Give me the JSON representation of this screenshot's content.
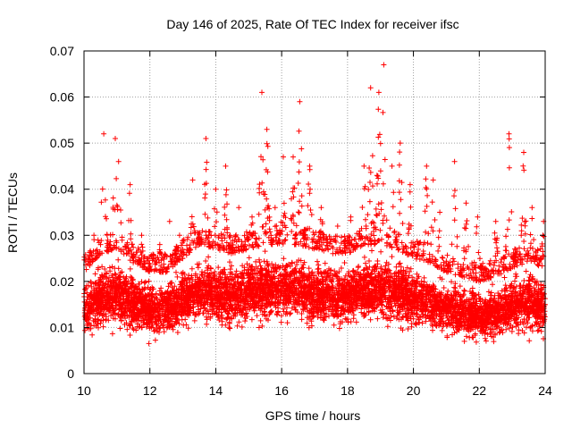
{
  "chart_data": {
    "type": "scatter",
    "title": "Day 146 of 2025, Rate Of TEC Index for receiver ifsc",
    "xlabel": "GPS time / hours",
    "ylabel": "ROTI / TECUs",
    "xlim": [
      10,
      24
    ],
    "ylim": [
      0,
      0.07
    ],
    "x_ticks": [
      10,
      12,
      14,
      16,
      18,
      20,
      22,
      24
    ],
    "y_ticks": [
      0,
      0.01,
      0.02,
      0.03,
      0.04,
      0.05,
      0.06,
      0.07
    ],
    "x_tick_labels": [
      "10",
      "12",
      "14",
      "16",
      "18",
      "20",
      "22",
      "24"
    ],
    "y_tick_labels": [
      "0",
      "0.01",
      "0.02",
      "0.03",
      "0.04",
      "0.05",
      "0.06",
      "0.07"
    ],
    "grid": true,
    "marker": "+",
    "series": [
      {
        "name": "ROTI",
        "color": "#ff0000",
        "points_per_hour": 500,
        "baseline_envelope": {
          "x": [
            10,
            10.5,
            11,
            11.5,
            12,
            12.5,
            13,
            13.5,
            14,
            14.5,
            15,
            15.5,
            16,
            16.5,
            17,
            17.5,
            18,
            18.5,
            19,
            19.5,
            20,
            20.5,
            21,
            21.5,
            22,
            22.5,
            23,
            23.5,
            24
          ],
          "low": [
            0.007,
            0.008,
            0.009,
            0.008,
            0.007,
            0.008,
            0.008,
            0.009,
            0.009,
            0.008,
            0.009,
            0.01,
            0.01,
            0.01,
            0.009,
            0.009,
            0.009,
            0.01,
            0.01,
            0.01,
            0.009,
            0.008,
            0.008,
            0.007,
            0.007,
            0.007,
            0.008,
            0.008,
            0.008
          ],
          "high": [
            0.022,
            0.026,
            0.027,
            0.024,
            0.022,
            0.022,
            0.025,
            0.028,
            0.027,
            0.026,
            0.027,
            0.028,
            0.028,
            0.028,
            0.027,
            0.026,
            0.026,
            0.028,
            0.028,
            0.027,
            0.025,
            0.024,
            0.022,
            0.021,
            0.02,
            0.021,
            0.023,
            0.024,
            0.023
          ]
        },
        "spikes": [
          {
            "x": 10.3,
            "y": 0.03
          },
          {
            "x": 10.6,
            "y": 0.052
          },
          {
            "x": 10.95,
            "y": 0.051
          },
          {
            "x": 11.05,
            "y": 0.046
          },
          {
            "x": 11.4,
            "y": 0.041
          },
          {
            "x": 11.75,
            "y": 0.03
          },
          {
            "x": 12.3,
            "y": 0.028
          },
          {
            "x": 12.6,
            "y": 0.033
          },
          {
            "x": 12.9,
            "y": 0.03
          },
          {
            "x": 13.3,
            "y": 0.042
          },
          {
            "x": 13.7,
            "y": 0.051
          },
          {
            "x": 14.0,
            "y": 0.04
          },
          {
            "x": 14.3,
            "y": 0.045
          },
          {
            "x": 14.7,
            "y": 0.036
          },
          {
            "x": 15.1,
            "y": 0.034
          },
          {
            "x": 15.4,
            "y": 0.061
          },
          {
            "x": 15.55,
            "y": 0.053
          },
          {
            "x": 15.8,
            "y": 0.036
          },
          {
            "x": 16.05,
            "y": 0.047
          },
          {
            "x": 16.35,
            "y": 0.047
          },
          {
            "x": 16.55,
            "y": 0.059
          },
          {
            "x": 16.85,
            "y": 0.045
          },
          {
            "x": 17.2,
            "y": 0.036
          },
          {
            "x": 17.7,
            "y": 0.032
          },
          {
            "x": 18.1,
            "y": 0.034
          },
          {
            "x": 18.5,
            "y": 0.045
          },
          {
            "x": 18.7,
            "y": 0.062
          },
          {
            "x": 18.95,
            "y": 0.061
          },
          {
            "x": 19.1,
            "y": 0.067
          },
          {
            "x": 19.35,
            "y": 0.045
          },
          {
            "x": 19.6,
            "y": 0.05
          },
          {
            "x": 19.9,
            "y": 0.041
          },
          {
            "x": 20.4,
            "y": 0.045
          },
          {
            "x": 20.6,
            "y": 0.042
          },
          {
            "x": 20.8,
            "y": 0.035
          },
          {
            "x": 21.25,
            "y": 0.046
          },
          {
            "x": 21.6,
            "y": 0.037
          },
          {
            "x": 21.95,
            "y": 0.034
          },
          {
            "x": 22.5,
            "y": 0.033
          },
          {
            "x": 22.9,
            "y": 0.052
          },
          {
            "x": 23.35,
            "y": 0.048
          },
          {
            "x": 23.6,
            "y": 0.036
          },
          {
            "x": 23.95,
            "y": 0.033
          }
        ]
      }
    ]
  }
}
